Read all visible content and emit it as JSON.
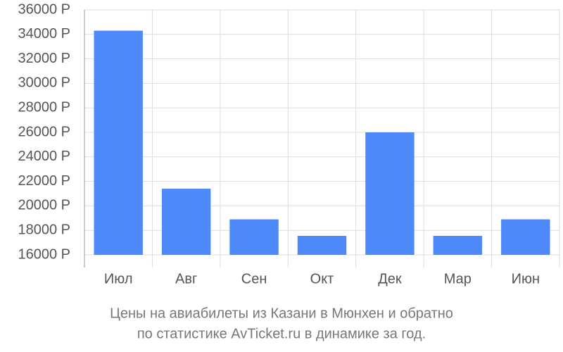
{
  "chart_data": {
    "type": "bar",
    "title": "Цены на авиабилеты из Казани в Мюнхен и обратно",
    "subtitle": "по статистике AvTicket.ru в динамике за год.",
    "categories": [
      "Июл",
      "Авг",
      "Сен",
      "Окт",
      "Дек",
      "Мар",
      "Июн"
    ],
    "values": [
      34300,
      21400,
      18900,
      17550,
      26000,
      17550,
      18900
    ],
    "color": "#4d89f9",
    "ylim": [
      16000,
      36000
    ],
    "yticks": [
      {
        "value": 16000,
        "label": "16000 Р"
      },
      {
        "value": 18000,
        "label": "18000 Р"
      },
      {
        "value": 20000,
        "label": "20000 Р"
      },
      {
        "value": 22000,
        "label": "22000 Р"
      },
      {
        "value": 24000,
        "label": "24000 Р"
      },
      {
        "value": 26000,
        "label": "26000 Р"
      },
      {
        "value": 28000,
        "label": "28000 Р"
      },
      {
        "value": 30000,
        "label": "30000 Р"
      },
      {
        "value": 32000,
        "label": "32000 Р"
      },
      {
        "value": 34000,
        "label": "34000 Р"
      },
      {
        "value": 36000,
        "label": "36000 Р"
      }
    ],
    "grid": true
  }
}
